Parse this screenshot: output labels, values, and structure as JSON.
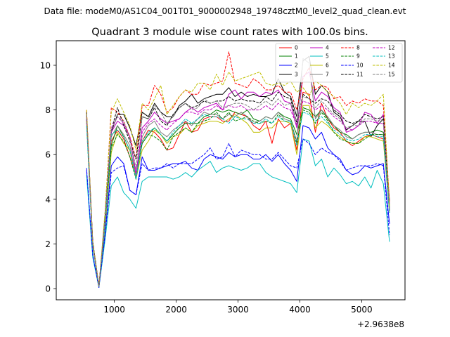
{
  "figure": {
    "suptitle": "Data file: modeM0/AS1C04_001T01_9000002948_19748cztM0_level2_quad_clean.evt"
  },
  "chart_data": {
    "type": "line",
    "title": "Quadrant 3 module wise count rates with 100.0s bins.",
    "xlabel": "",
    "ylabel": "",
    "x_offset_label": "+2.9638e8",
    "xlim": [
      60,
      5700
    ],
    "ylim": [
      -0.5,
      11.1
    ],
    "xticks": [
      1000,
      2000,
      3000,
      4000,
      5000
    ],
    "yticks": [
      0,
      2,
      4,
      6,
      8,
      10
    ],
    "legend_position": "upper right",
    "x": [
      550,
      650,
      750,
      850,
      950,
      1050,
      1150,
      1250,
      1350,
      1450,
      1550,
      1650,
      1750,
      1850,
      1950,
      2050,
      2150,
      2250,
      2350,
      2450,
      2550,
      2650,
      2750,
      2850,
      2950,
      3050,
      3150,
      3250,
      3350,
      3450,
      3550,
      3650,
      3750,
      3850,
      3950,
      4050,
      4150,
      4250,
      4350,
      4450,
      4550,
      4650,
      4750,
      4850,
      4950,
      5050,
      5150,
      5250,
      5350,
      5450
    ],
    "series": [
      {
        "name": "0",
        "color": "#ff0000",
        "dash": "solid",
        "values": [
          7.8,
          2.0,
          0.1,
          3.0,
          6.6,
          7.1,
          6.7,
          5.9,
          5.0,
          6.6,
          7.1,
          7.0,
          6.7,
          6.2,
          6.3,
          6.9,
          7.5,
          7.0,
          7.1,
          7.6,
          7.7,
          7.7,
          7.5,
          7.5,
          7.9,
          7.8,
          7.7,
          7.3,
          7.1,
          7.5,
          6.5,
          7.6,
          7.2,
          7.4,
          6.2,
          8.8,
          8.7,
          7.0,
          8.3,
          7.6,
          7.2,
          7.0,
          6.6,
          6.4,
          6.6,
          6.8,
          6.9,
          6.8,
          6.7,
          3.5
        ]
      },
      {
        "name": "1",
        "color": "#008000",
        "dash": "solid",
        "values": [
          7.6,
          2.1,
          0.1,
          3.1,
          6.4,
          7.3,
          6.8,
          6.2,
          5.0,
          6.5,
          6.9,
          7.2,
          6.9,
          6.6,
          6.9,
          7.2,
          7.4,
          7.4,
          7.4,
          7.7,
          7.8,
          8.0,
          7.9,
          8.0,
          7.9,
          7.8,
          8.0,
          7.6,
          7.5,
          7.7,
          7.6,
          7.9,
          7.7,
          7.6,
          6.9,
          8.1,
          8.0,
          7.7,
          8.0,
          7.6,
          7.3,
          7.0,
          6.9,
          6.7,
          6.9,
          7.0,
          7.0,
          7.1,
          7.0,
          3.6
        ]
      },
      {
        "name": "2",
        "color": "#0000ff",
        "dash": "solid",
        "values": [
          5.3,
          1.5,
          0.05,
          2.5,
          5.5,
          5.9,
          5.6,
          4.4,
          4.2,
          5.9,
          5.3,
          5.3,
          5.4,
          5.5,
          5.6,
          5.6,
          5.7,
          5.4,
          5.3,
          5.8,
          6.0,
          5.9,
          5.8,
          6.1,
          5.9,
          6.0,
          6.0,
          5.8,
          5.8,
          6.0,
          5.7,
          6.0,
          5.6,
          5.3,
          4.8,
          7.3,
          7.2,
          6.7,
          7.0,
          6.3,
          6.0,
          5.8,
          5.3,
          5.1,
          5.2,
          5.5,
          5.4,
          5.5,
          5.6,
          2.9
        ]
      },
      {
        "name": "3",
        "color": "#000000",
        "dash": "solid",
        "values": [
          7.9,
          2.1,
          0.1,
          3.3,
          7.0,
          7.8,
          7.8,
          7.2,
          6.4,
          7.9,
          7.7,
          8.3,
          7.9,
          7.7,
          7.7,
          8.2,
          8.4,
          8.7,
          8.3,
          8.5,
          8.6,
          8.7,
          8.7,
          9.0,
          8.6,
          8.8,
          8.6,
          8.7,
          8.6,
          8.6,
          8.7,
          9.4,
          8.8,
          8.6,
          7.7,
          10.2,
          10.4,
          8.7,
          9.1,
          8.8,
          7.9,
          7.7,
          7.1,
          7.3,
          7.5,
          7.5,
          6.8,
          7.3,
          7.6,
          3.9
        ]
      },
      {
        "name": "4",
        "color": "#bf00bf",
        "dash": "solid",
        "values": [
          7.7,
          2.0,
          0.1,
          3.0,
          7.0,
          7.5,
          7.3,
          6.8,
          5.1,
          7.2,
          7.5,
          7.9,
          7.6,
          7.4,
          7.5,
          7.6,
          7.9,
          8.1,
          7.9,
          8.1,
          8.2,
          8.3,
          8.0,
          8.7,
          8.9,
          8.5,
          8.8,
          8.8,
          8.6,
          8.8,
          8.7,
          8.9,
          8.4,
          8.3,
          7.2,
          9.5,
          9.7,
          8.4,
          8.8,
          8.6,
          8.1,
          7.9,
          7.0,
          7.1,
          7.3,
          7.9,
          7.8,
          7.4,
          7.8,
          3.8
        ]
      },
      {
        "name": "5",
        "color": "#00bfbf",
        "dash": "solid",
        "values": [
          5.1,
          1.4,
          0.05,
          2.2,
          4.6,
          5.0,
          4.3,
          4.0,
          3.6,
          4.8,
          5.0,
          5.0,
          5.0,
          5.0,
          4.9,
          5.0,
          5.2,
          5.0,
          5.3,
          5.5,
          5.7,
          5.2,
          5.4,
          5.5,
          5.4,
          5.3,
          5.4,
          5.6,
          5.6,
          5.2,
          5.0,
          4.9,
          4.8,
          4.7,
          4.3,
          6.7,
          6.6,
          5.5,
          5.8,
          5.0,
          5.4,
          5.1,
          4.7,
          4.8,
          4.6,
          5.0,
          4.5,
          5.3,
          4.7,
          2.1
        ]
      },
      {
        "name": "6",
        "color": "#bfbf00",
        "dash": "solid",
        "values": [
          7.5,
          1.9,
          0.1,
          2.8,
          6.1,
          7.0,
          6.5,
          6.2,
          4.9,
          6.2,
          6.6,
          7.1,
          6.9,
          6.5,
          6.8,
          6.9,
          7.2,
          7.0,
          7.3,
          7.4,
          7.5,
          7.5,
          7.4,
          7.6,
          7.8,
          7.6,
          7.4,
          7.0,
          7.0,
          7.2,
          7.2,
          7.5,
          7.5,
          7.4,
          6.0,
          8.2,
          8.2,
          7.2,
          7.5,
          7.3,
          7.0,
          6.8,
          6.6,
          6.5,
          6.5,
          6.8,
          6.8,
          6.7,
          6.6,
          3.4
        ]
      },
      {
        "name": "7",
        "color": "#7f7f7f",
        "dash": "solid",
        "values": [
          7.7,
          2.0,
          0.1,
          3.0,
          6.8,
          7.3,
          6.9,
          6.4,
          5.0,
          6.8,
          7.3,
          7.5,
          7.0,
          6.8,
          7.1,
          7.3,
          7.5,
          7.3,
          7.6,
          7.9,
          7.8,
          7.8,
          7.6,
          7.8,
          7.7,
          7.9,
          7.7,
          7.4,
          7.5,
          7.7,
          7.6,
          7.9,
          7.6,
          7.5,
          6.6,
          10.3,
          10.1,
          7.6,
          8.0,
          7.7,
          7.3,
          7.1,
          6.8,
          6.7,
          6.9,
          7.0,
          7.0,
          6.9,
          6.9,
          3.5
        ]
      },
      {
        "name": "8",
        "color": "#ff0000",
        "dash": "dashed",
        "values": [
          8.0,
          2.1,
          0.1,
          3.4,
          8.1,
          7.9,
          7.5,
          6.8,
          5.8,
          8.2,
          8.2,
          9.1,
          8.7,
          7.9,
          8.1,
          8.6,
          8.9,
          8.7,
          8.7,
          9.2,
          9.1,
          9.2,
          9.3,
          10.6,
          9.2,
          9.1,
          9.0,
          9.4,
          9.2,
          8.9,
          8.9,
          9.1,
          8.8,
          8.8,
          8.0,
          9.4,
          9.9,
          8.9,
          9.1,
          9.0,
          8.5,
          8.6,
          8.2,
          8.4,
          8.3,
          8.5,
          8.4,
          8.4,
          8.2,
          3.9
        ]
      },
      {
        "name": "9",
        "color": "#008000",
        "dash": "dashed",
        "values": [
          7.6,
          2.0,
          0.1,
          3.0,
          6.3,
          6.9,
          6.6,
          5.9,
          4.9,
          6.5,
          6.9,
          6.8,
          6.6,
          6.2,
          6.8,
          7.0,
          7.2,
          7.0,
          7.4,
          7.5,
          7.6,
          7.9,
          7.6,
          7.9,
          7.5,
          7.6,
          7.7,
          7.5,
          7.4,
          7.5,
          7.4,
          7.8,
          7.5,
          7.5,
          6.5,
          8.0,
          7.9,
          7.4,
          7.9,
          7.5,
          7.0,
          6.7,
          6.6,
          6.5,
          6.5,
          6.7,
          6.9,
          6.9,
          6.9,
          3.4
        ]
      },
      {
        "name": "10",
        "color": "#0000ff",
        "dash": "dashed",
        "values": [
          5.4,
          1.5,
          0.05,
          2.4,
          5.2,
          5.4,
          5.5,
          4.4,
          4.2,
          5.6,
          5.3,
          5.4,
          5.4,
          5.6,
          5.4,
          5.6,
          5.6,
          5.6,
          5.8,
          6.0,
          6.3,
          5.8,
          5.9,
          6.5,
          5.9,
          6.2,
          6.1,
          6.0,
          6.0,
          5.8,
          5.8,
          6.1,
          5.8,
          5.5,
          5.4,
          6.7,
          6.5,
          6.0,
          6.3,
          6.1,
          6.0,
          5.7,
          5.3,
          5.4,
          5.5,
          5.5,
          5.5,
          5.6,
          5.5,
          2.4
        ]
      },
      {
        "name": "11",
        "color": "#000000",
        "dash": "dashed",
        "values": [
          7.6,
          2.0,
          0.1,
          3.2,
          7.1,
          8.1,
          7.3,
          6.6,
          5.8,
          7.7,
          7.6,
          8.1,
          7.5,
          7.3,
          7.8,
          8.1,
          8.3,
          8.1,
          8.2,
          8.4,
          8.3,
          8.4,
          8.4,
          8.6,
          8.4,
          8.5,
          8.4,
          8.4,
          8.3,
          8.6,
          8.4,
          8.8,
          8.6,
          8.5,
          7.4,
          8.7,
          8.5,
          8.3,
          8.5,
          8.4,
          8.0,
          7.8,
          7.5,
          7.4,
          7.5,
          7.8,
          7.7,
          7.6,
          7.7,
          3.6
        ]
      },
      {
        "name": "12",
        "color": "#bf00bf",
        "dash": "dashed",
        "values": [
          7.6,
          2.0,
          0.1,
          3.1,
          7.2,
          7.7,
          7.4,
          6.8,
          5.2,
          7.0,
          7.4,
          7.6,
          7.3,
          7.1,
          7.4,
          7.6,
          7.9,
          7.9,
          7.8,
          8.0,
          8.0,
          8.2,
          8.0,
          8.2,
          8.1,
          8.2,
          8.0,
          8.0,
          8.0,
          8.2,
          8.0,
          8.3,
          8.1,
          8.0,
          7.3,
          8.4,
          8.3,
          8.0,
          8.2,
          8.0,
          7.7,
          7.5,
          7.2,
          7.1,
          7.3,
          7.5,
          7.5,
          7.4,
          7.4,
          3.6
        ]
      },
      {
        "name": "13",
        "color": "#00bfbf",
        "dash": "dashed",
        "values": [
          7.3,
          1.9,
          0.1,
          2.9,
          6.9,
          7.1,
          6.8,
          6.2,
          4.9,
          6.6,
          7.0,
          7.2,
          6.9,
          6.6,
          7.0,
          7.3,
          7.6,
          7.4,
          7.6,
          7.8,
          7.7,
          7.7,
          7.6,
          7.4,
          7.7,
          7.6,
          7.6,
          7.4,
          7.4,
          7.6,
          7.4,
          7.7,
          7.5,
          7.5,
          6.4,
          7.9,
          7.8,
          7.5,
          7.7,
          7.4,
          7.1,
          6.9,
          6.7,
          6.6,
          6.7,
          6.9,
          6.9,
          6.8,
          6.8,
          3.4
        ]
      },
      {
        "name": "14",
        "color": "#bfbf00",
        "dash": "dashed",
        "values": [
          8.0,
          2.1,
          0.1,
          3.5,
          7.9,
          8.5,
          7.9,
          7.3,
          6.2,
          8.3,
          8.0,
          8.5,
          9.1,
          7.8,
          8.2,
          8.6,
          8.9,
          8.8,
          9.2,
          9.2,
          8.9,
          9.6,
          9.1,
          9.7,
          9.3,
          9.4,
          9.5,
          9.6,
          9.7,
          9.2,
          9.1,
          9.2,
          9.1,
          9.3,
          8.8,
          9.0,
          8.6,
          9.3,
          9.1,
          8.8,
          8.6,
          8.3,
          7.8,
          8.3,
          8.1,
          8.3,
          8.2,
          8.4,
          8.7,
          3.7
        ]
      },
      {
        "name": "15",
        "color": "#7f7f7f",
        "dash": "dashed",
        "values": [
          7.8,
          2.0,
          0.1,
          3.2,
          7.1,
          7.7,
          7.5,
          6.7,
          5.4,
          7.7,
          7.6,
          8.2,
          7.9,
          7.4,
          7.7,
          8.1,
          8.3,
          8.0,
          8.1,
          8.5,
          8.3,
          8.4,
          8.1,
          8.2,
          8.3,
          8.3,
          8.2,
          8.0,
          8.2,
          8.4,
          8.2,
          8.5,
          8.2,
          8.3,
          7.5,
          8.6,
          8.5,
          8.1,
          8.4,
          8.1,
          7.8,
          7.6,
          7.2,
          7.3,
          7.3,
          7.6,
          7.6,
          7.5,
          7.6,
          3.6
        ]
      }
    ]
  }
}
